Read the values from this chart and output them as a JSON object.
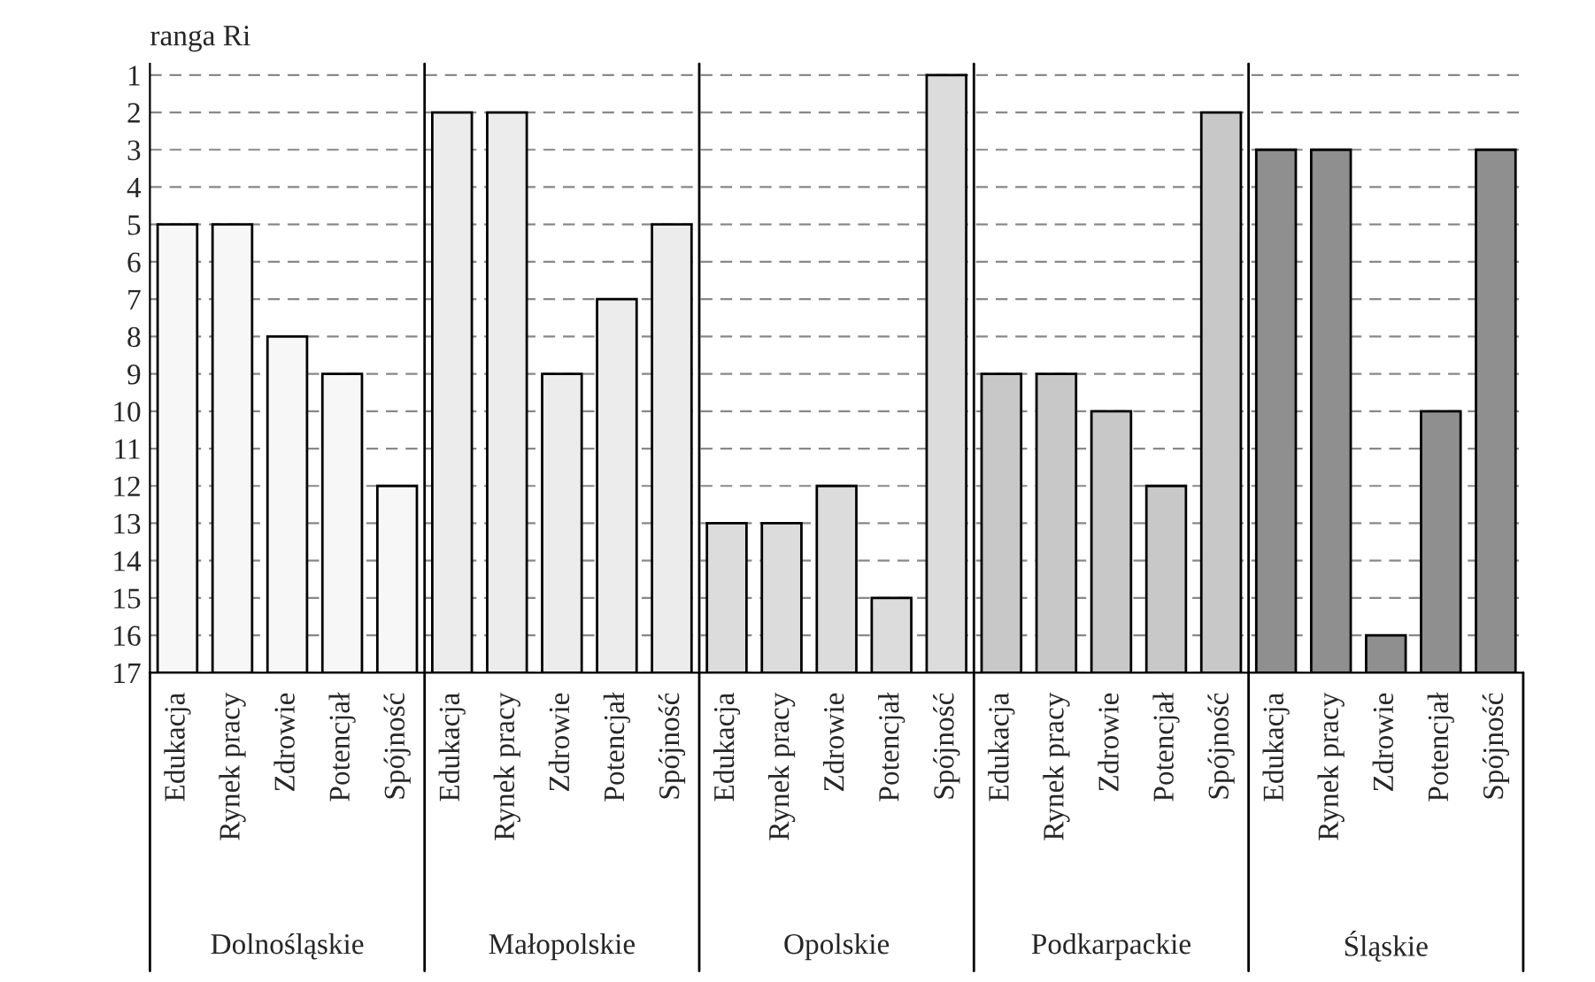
{
  "chart_data": {
    "type": "bar",
    "ylabel": "ranga Ri",
    "categories": [
      "Edukacja",
      "Rynek pracy",
      "Zdrowie",
      "Potencjał",
      "Spójność",
      "Edukacja",
      "Rynek pracy",
      "Zdrowie",
      "Potencjał",
      "Spójność",
      "Edukacja",
      "Rynek pracy",
      "Zdrowie",
      "Potencjał",
      "Spójność",
      "Edukacja",
      "Rynek pracy",
      "Zdrowie",
      "Potencjał",
      "Spójność",
      "Edukacja",
      "Rynek pracy",
      "Zdrowie",
      "Potencjał",
      "Spójność"
    ],
    "base": [
      17,
      17,
      17,
      17,
      17,
      17,
      17,
      17,
      17,
      17,
      17,
      17,
      17,
      17,
      17,
      17,
      17,
      17,
      17,
      17,
      17,
      17,
      17,
      17,
      17
    ],
    "values": [
      -12,
      -12,
      -9,
      -8,
      -5,
      -15,
      -15,
      -8,
      -10,
      -12,
      -4,
      -4,
      -5,
      -2,
      -16,
      -8,
      -8,
      -7,
      -5,
      -15,
      -14,
      -14,
      -1,
      -7,
      -14
    ],
    "colors": [
      "#f7f7f7",
      "#f7f7f7",
      "#f7f7f7",
      "#f7f7f7",
      "#f7f7f7",
      "#ececec",
      "#ececec",
      "#ececec",
      "#ececec",
      "#ececec",
      "#dcdcdc",
      "#dcdcdc",
      "#dcdcdc",
      "#dcdcdc",
      "#dcdcdc",
      "#c8c8c8",
      "#c8c8c8",
      "#c8c8c8",
      "#c8c8c8",
      "#c8c8c8",
      "#8f8f8f",
      "#8f8f8f",
      "#8f8f8f",
      "#8f8f8f",
      "#8f8f8f"
    ],
    "annotations": [
      "Dolnośląskie",
      "Małopolskie",
      "Opolskie",
      "Podkarpackie",
      "Śląskie"
    ],
    "ylim": [
      17,
      0.7
    ],
    "yticks": [
      1,
      2,
      3,
      4,
      5,
      6,
      7,
      8,
      9,
      10,
      11,
      12,
      13,
      14,
      15,
      16,
      17
    ],
    "grid": "y"
  }
}
